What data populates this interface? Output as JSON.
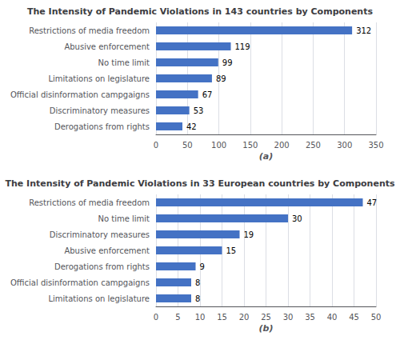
{
  "chart_data": [
    {
      "type": "bar",
      "orientation": "horizontal",
      "title": "The Intensity of Pandemic Violations in 143 countries by Components",
      "categories": [
        "Derogations from rights",
        "Discriminatory measures",
        "Official disinformation campgaigns",
        "Limitations on legislature",
        "No time limit",
        "Abusive enforcement",
        "Restrictions of media freedom"
      ],
      "values": [
        42,
        53,
        67,
        89,
        99,
        119,
        312
      ],
      "xlim": [
        0,
        350
      ],
      "xticks": [
        0,
        50,
        100,
        150,
        200,
        250,
        300,
        350
      ],
      "xlabel": "(a)",
      "color": "#4472C4",
      "data_labels": true,
      "grid": true
    },
    {
      "type": "bar",
      "orientation": "horizontal",
      "title": "The Intensity of Pandemic Violations in 33 European countries by Components",
      "categories": [
        "Limitations on legislature",
        "Official disinformation campgaigns",
        "Derogations from rights",
        "Abusive enforcement",
        "Discriminatory measures",
        "No time limit",
        "Restrictions of media freedom"
      ],
      "values": [
        8,
        8,
        9,
        15,
        19,
        30,
        47
      ],
      "xlim": [
        0,
        50
      ],
      "xticks": [
        0,
        5,
        10,
        15,
        20,
        25,
        30,
        35,
        40,
        45,
        50
      ],
      "xlabel": "(b)",
      "color": "#4472C4",
      "data_labels": true,
      "grid": true
    }
  ]
}
